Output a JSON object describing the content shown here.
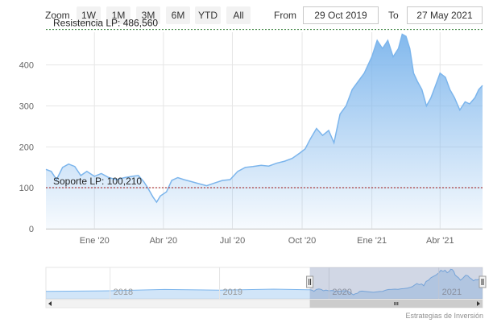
{
  "toolbar": {
    "zoom_label": "Zoom",
    "zoom_buttons": [
      "1W",
      "1M",
      "3M",
      "6M",
      "YTD",
      "All"
    ],
    "from_label": "From",
    "from_value": "29 Oct 2019",
    "to_label": "To",
    "to_value": "27 May 2021"
  },
  "credits": "Estrategias de Inversión",
  "chart_data": {
    "type": "area",
    "title": "",
    "xlabel": "",
    "ylabel": "",
    "x_range": [
      "2019-10-29",
      "2021-05-27"
    ],
    "ylim": [
      0,
      480
    ],
    "y_ticks": [
      0,
      100,
      200,
      300,
      400
    ],
    "x_tick_labels": [
      {
        "date": "2020-01-01",
        "label": "Ene '20"
      },
      {
        "date": "2020-04-01",
        "label": "Abr '20"
      },
      {
        "date": "2020-07-01",
        "label": "Jul '20"
      },
      {
        "date": "2020-10-01",
        "label": "Oct '20"
      },
      {
        "date": "2021-01-01",
        "label": "Ene '21"
      },
      {
        "date": "2021-04-01",
        "label": "Abr '21"
      }
    ],
    "grid": true,
    "colors": {
      "line": "#7cb5ec",
      "fill": "#9ec8f2",
      "resistance": "#2e7d32",
      "support": "#a01818"
    },
    "series": [
      {
        "x": [
          "2019-10-29",
          "2019-11-05",
          "2019-11-12",
          "2019-11-20",
          "2019-11-28",
          "2019-12-06",
          "2019-12-14",
          "2019-12-22",
          "2020-01-01",
          "2020-01-10",
          "2020-01-20",
          "2020-01-30",
          "2020-02-10",
          "2020-02-20",
          "2020-02-28",
          "2020-03-06",
          "2020-03-12",
          "2020-03-18",
          "2020-03-23",
          "2020-03-28",
          "2020-04-05",
          "2020-04-12",
          "2020-04-20",
          "2020-04-28",
          "2020-05-08",
          "2020-05-18",
          "2020-05-28",
          "2020-06-08",
          "2020-06-18",
          "2020-06-28",
          "2020-07-08",
          "2020-07-18",
          "2020-07-28",
          "2020-08-08",
          "2020-08-18",
          "2020-08-28",
          "2020-09-08",
          "2020-09-18",
          "2020-09-28",
          "2020-10-05",
          "2020-10-12",
          "2020-10-20",
          "2020-10-28",
          "2020-11-05",
          "2020-11-12",
          "2020-11-20",
          "2020-11-28",
          "2020-12-06",
          "2020-12-14",
          "2020-12-22",
          "2021-01-01",
          "2021-01-08",
          "2021-01-15",
          "2021-01-22",
          "2021-01-29",
          "2021-02-05",
          "2021-02-10",
          "2021-02-15",
          "2021-02-20",
          "2021-02-25",
          "2021-03-02",
          "2021-03-08",
          "2021-03-14",
          "2021-03-20",
          "2021-03-26",
          "2021-04-01",
          "2021-04-08",
          "2021-04-14",
          "2021-04-20",
          "2021-04-27",
          "2021-05-04",
          "2021-05-10",
          "2021-05-17",
          "2021-05-22",
          "2021-05-27"
        ],
        "y": [
          145,
          140,
          120,
          150,
          158,
          152,
          130,
          140,
          128,
          135,
          125,
          120,
          125,
          128,
          130,
          115,
          98,
          78,
          65,
          80,
          90,
          118,
          125,
          120,
          115,
          110,
          105,
          112,
          118,
          120,
          140,
          150,
          152,
          155,
          153,
          160,
          165,
          172,
          185,
          195,
          220,
          245,
          228,
          240,
          210,
          280,
          300,
          340,
          360,
          380,
          420,
          460,
          440,
          460,
          420,
          440,
          475,
          470,
          440,
          380,
          360,
          340,
          300,
          320,
          350,
          380,
          370,
          340,
          320,
          290,
          310,
          305,
          320,
          340,
          350
        ]
      }
    ],
    "annotations": [
      {
        "type": "resistance",
        "label": "Resistencia LP: 486,560",
        "value": 486.56
      },
      {
        "type": "support",
        "label": "Soporte LP: 100,210",
        "value": 100.21
      }
    ],
    "navigator": {
      "year_labels": [
        "2018",
        "2019",
        "2020",
        "2021"
      ],
      "selected_range": [
        "2019-10-29",
        "2021-05-27"
      ]
    }
  }
}
